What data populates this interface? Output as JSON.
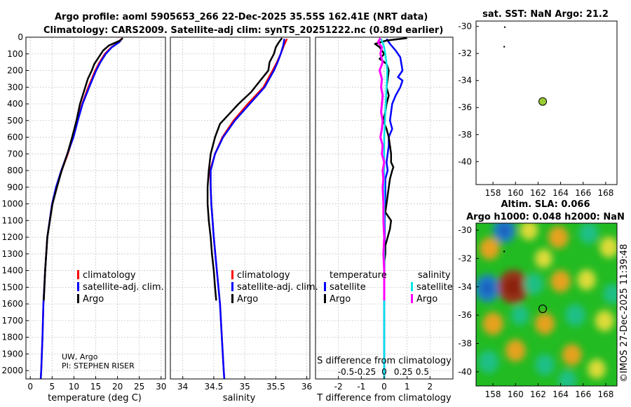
{
  "title_line1": "Argo profile: aoml 5905653_266 22-Dec-2025 35.55S 162.41E (NRT data)",
  "title_line2": "Climatology: CARS2009. Satellite-adj clim: synTS_20251222.nc (0.89d earlier)",
  "credit_line1": "UW, Argo",
  "credit_line2": "PI: STEPHEN RISER",
  "watermark": "©IMOS 27-Dec-2025 11:39:48",
  "colors": {
    "climatology": "#ff0000",
    "satellite": "#0000ff",
    "argo": "#000000",
    "s_satellite": "#00e5e5",
    "s_argo": "#ff00ff",
    "float": "#99cc33",
    "map_bg": "#22bb22"
  },
  "chart_data": [
    {
      "type": "line",
      "id": "temperature",
      "xlabel": "temperature (deg C)",
      "xlim": [
        -1,
        31
      ],
      "xticks": [
        0,
        5,
        10,
        15,
        20,
        25,
        30
      ],
      "ylim": [
        2050,
        0
      ],
      "yticks": [
        0,
        100,
        200,
        300,
        400,
        500,
        600,
        700,
        800,
        900,
        1000,
        1100,
        1200,
        1300,
        1400,
        1500,
        1600,
        1700,
        1800,
        1900,
        2000
      ],
      "legend": [
        "climatology",
        "satellite-adj. clim.",
        "Argo"
      ],
      "series": [
        {
          "name": "climatology",
          "depth": [
            10,
            30,
            60,
            100,
            150,
            200,
            300,
            400,
            500,
            600,
            700,
            800,
            900,
            1000,
            1200,
            1400,
            1600,
            1800,
            2000,
            2050
          ],
          "values": [
            20.8,
            20.3,
            18.6,
            17.1,
            15.9,
            14.9,
            13.3,
            11.9,
            10.8,
            9.8,
            8.6,
            7.2,
            6.0,
            5.0,
            3.9,
            3.4,
            3.0,
            2.8,
            2.5,
            2.4
          ]
        },
        {
          "name": "satellite-adj. clim.",
          "depth": [
            10,
            30,
            60,
            100,
            150,
            200,
            300,
            400,
            500,
            600,
            700,
            800,
            900,
            1000,
            1200,
            1400,
            1600,
            1800,
            2000,
            2050
          ],
          "values": [
            21.0,
            20.4,
            18.7,
            17.3,
            16.1,
            15.1,
            13.5,
            12.0,
            10.9,
            9.9,
            8.5,
            7.1,
            5.9,
            5.0,
            3.9,
            3.4,
            3.0,
            2.8,
            2.5,
            2.4
          ]
        },
        {
          "name": "Argo",
          "depth": [
            5,
            20,
            50,
            80,
            120,
            160,
            200,
            250,
            300,
            400,
            500,
            600,
            700,
            800,
            900,
            1000,
            1200,
            1400,
            1580
          ],
          "values": [
            21.2,
            20.6,
            18.0,
            16.7,
            15.7,
            14.7,
            14.1,
            13.2,
            12.6,
            11.4,
            10.6,
            9.6,
            8.5,
            7.2,
            6.1,
            5.1,
            3.9,
            3.4,
            3.1
          ]
        }
      ]
    },
    {
      "type": "line",
      "id": "salinity",
      "xlabel": "salinity",
      "xlim": [
        33.8,
        36.05
      ],
      "xticks": [
        34,
        34.5,
        35,
        35.5,
        36
      ],
      "ylim": [
        2050,
        0
      ],
      "legend": [
        "climatology",
        "satellite-adj. clim.",
        "Argo"
      ],
      "series": [
        {
          "name": "climatology",
          "depth": [
            10,
            50,
            100,
            150,
            200,
            300,
            400,
            500,
            600,
            700,
            800,
            900,
            1000,
            1200,
            1400,
            1600,
            1800,
            2000,
            2050
          ],
          "values": [
            35.68,
            35.63,
            35.58,
            35.52,
            35.45,
            35.3,
            35.05,
            34.82,
            34.64,
            34.52,
            34.44,
            34.45,
            34.46,
            34.5,
            34.55,
            34.6,
            34.63,
            34.66,
            34.67
          ]
        },
        {
          "name": "satellite-adj. clim.",
          "depth": [
            10,
            50,
            100,
            150,
            200,
            300,
            400,
            500,
            600,
            700,
            800,
            900,
            1000,
            1200,
            1400,
            1600,
            1800,
            2000,
            2050
          ],
          "values": [
            35.64,
            35.62,
            35.58,
            35.53,
            35.47,
            35.32,
            35.08,
            34.84,
            34.65,
            34.52,
            34.45,
            34.45,
            34.46,
            34.5,
            34.55,
            34.6,
            34.63,
            34.66,
            34.67
          ]
        },
        {
          "name": "Argo",
          "depth": [
            5,
            30,
            60,
            100,
            150,
            200,
            260,
            330,
            400,
            460,
            520,
            600,
            700,
            800,
            900,
            1000,
            1100,
            1200,
            1300,
            1400,
            1500,
            1580
          ],
          "values": [
            35.6,
            35.55,
            35.5,
            35.47,
            35.4,
            35.38,
            35.25,
            35.1,
            34.9,
            34.75,
            34.6,
            34.52,
            34.45,
            34.42,
            34.4,
            34.4,
            34.42,
            34.45,
            34.47,
            34.5,
            34.52,
            34.54
          ]
        }
      ]
    },
    {
      "type": "line",
      "id": "differences",
      "xlabel": "T difference from climatology",
      "xlabel_top": "S difference from climatology",
      "xlim": [
        -3,
        3
      ],
      "xticks": [
        -2,
        -1,
        0,
        1,
        2
      ],
      "sticks": [
        -0.5,
        -0.25,
        0,
        0.25,
        0.5
      ],
      "sticklabels": [
        "-0.5",
        "-0.25",
        "0",
        "0.25",
        "0.5"
      ],
      "ylim": [
        2050,
        0
      ],
      "legend_t_header": "temperature",
      "legend_s_header": "salinity",
      "legend_t": [
        "satellite",
        "Argo"
      ],
      "legend_s": [
        "satellite",
        "Argo"
      ],
      "series": [
        {
          "name": "T satellite",
          "depth": [
            10,
            40,
            80,
            120,
            160,
            200,
            240,
            260,
            300,
            350,
            400,
            450,
            500,
            550,
            600,
            650,
            700,
            750,
            800,
            850,
            900,
            950,
            1000,
            1100,
            1200,
            1300,
            1400,
            1500,
            1600,
            1700,
            1800,
            1900,
            2000,
            2050
          ],
          "values": [
            0.1,
            0.25,
            0.5,
            0.7,
            0.75,
            0.8,
            0.6,
            0.8,
            0.7,
            0.5,
            0.35,
            0.3,
            0.25,
            0.35,
            0.2,
            0.2,
            0.15,
            0.1,
            0.15,
            0.05,
            0.05,
            0.05,
            0.03,
            0.02,
            0.02,
            0.01,
            0.01,
            0.0,
            0.0,
            0.0,
            0.0,
            0.0,
            0.0,
            0.0
          ]
        },
        {
          "name": "T Argo",
          "depth": [
            5,
            20,
            40,
            60,
            80,
            100,
            130,
            160,
            200,
            250,
            300,
            350,
            400,
            450,
            500,
            550,
            600,
            650,
            700,
            750,
            780,
            800,
            850,
            900,
            950,
            1000,
            1050,
            1100,
            1150,
            1200,
            1250,
            1300,
            1350,
            1400,
            1450,
            1500,
            1580
          ],
          "values": [
            1.0,
            0.1,
            -0.4,
            -0.2,
            -0.1,
            0.0,
            -0.2,
            0.1,
            0.2,
            0.15,
            0.1,
            0.2,
            0.1,
            0.05,
            -0.05,
            0.1,
            0.2,
            0.25,
            0.3,
            0.3,
            0.4,
            0.35,
            0.25,
            0.2,
            0.15,
            0.1,
            0.05,
            0.3,
            0.25,
            0.15,
            0.05,
            0.05,
            0.0,
            0.0,
            0.0,
            0.0,
            0.0
          ]
        },
        {
          "name": "S satellite",
          "depth": [
            10,
            60,
            120,
            200,
            300,
            400,
            500,
            600,
            700,
            800,
            900,
            1000,
            1200,
            1400,
            1600,
            1800,
            2000,
            2050
          ],
          "values": [
            -0.04,
            0.0,
            0.02,
            0.04,
            0.03,
            0.02,
            0.01,
            0.0,
            0.0,
            0.0,
            0.0,
            0.0,
            0.0,
            0.0,
            0.0,
            0.0,
            0.0,
            0.0
          ]
        },
        {
          "name": "S Argo",
          "depth": [
            5,
            30,
            60,
            100,
            150,
            200,
            250,
            300,
            350,
            400,
            450,
            500,
            550,
            600,
            650,
            700,
            750,
            800,
            850,
            900,
            1000,
            1100,
            1200,
            1300,
            1400,
            1500,
            1580
          ],
          "values": [
            -0.05,
            -0.08,
            -0.03,
            -0.05,
            -0.02,
            -0.06,
            -0.03,
            -0.04,
            -0.02,
            -0.03,
            -0.04,
            -0.02,
            -0.03,
            -0.05,
            -0.02,
            -0.03,
            0.0,
            -0.02,
            -0.01,
            -0.02,
            -0.01,
            -0.01,
            0.0,
            -0.01,
            0.0,
            0.0,
            0.0
          ]
        }
      ]
    },
    {
      "type": "scatter",
      "id": "sst_map",
      "title": "sat. SST: NaN Argo: 21.2",
      "xlim": [
        156.5,
        169
      ],
      "ylim": [
        -41.7,
        -29.6
      ],
      "xticks": [
        158,
        160,
        162,
        164,
        166,
        168
      ],
      "yticks": [
        -30,
        -32,
        -34,
        -36,
        -38,
        -40
      ],
      "float_position": {
        "lon": 162.41,
        "lat": -35.55
      },
      "track_points": [
        {
          "lon": 159.05,
          "lat": -30.05
        },
        {
          "lon": 159.0,
          "lat": -31.5
        }
      ]
    },
    {
      "type": "heatmap",
      "id": "sla_map",
      "title_line1": "Altim. SLA: 0.066",
      "title_line2": "Argo h1000: 0.048 h2000: NaN",
      "xlim": [
        156.5,
        169
      ],
      "ylim": [
        -41,
        -29.5
      ],
      "xticks": [
        158,
        160,
        162,
        164,
        166,
        168
      ],
      "yticks": [
        -30,
        -32,
        -34,
        -36,
        -38,
        -40
      ],
      "float_position": {
        "lon": 162.41,
        "lat": -35.55
      },
      "track_points": [
        {
          "lon": 159.0,
          "lat": -31.5
        }
      ],
      "anomalies": [
        {
          "lon": 157.7,
          "lat": -31.3,
          "v": 0.55
        },
        {
          "lon": 159.0,
          "lat": -30.0,
          "v": -0.8
        },
        {
          "lon": 161.2,
          "lat": -30.0,
          "v": 0.35
        },
        {
          "lon": 163.8,
          "lat": -30.5,
          "v": 0.55
        },
        {
          "lon": 166.5,
          "lat": -30.2,
          "v": -0.5
        },
        {
          "lon": 168.3,
          "lat": -31.2,
          "v": 0.45
        },
        {
          "lon": 162.5,
          "lat": -32.0,
          "v": 0.3
        },
        {
          "lon": 157.5,
          "lat": -34.1,
          "v": -1.0
        },
        {
          "lon": 159.8,
          "lat": -34.0,
          "v": 1.5
        },
        {
          "lon": 161.6,
          "lat": -33.8,
          "v": -0.5
        },
        {
          "lon": 164.0,
          "lat": -33.6,
          "v": 0.55
        },
        {
          "lon": 166.3,
          "lat": -33.5,
          "v": 0.4
        },
        {
          "lon": 168.6,
          "lat": -34.5,
          "v": -0.4
        },
        {
          "lon": 158.0,
          "lat": -36.6,
          "v": 0.6
        },
        {
          "lon": 160.4,
          "lat": -36.0,
          "v": -0.35
        },
        {
          "lon": 162.6,
          "lat": -36.6,
          "v": 0.5
        },
        {
          "lon": 165.3,
          "lat": -36.0,
          "v": -0.55
        },
        {
          "lon": 167.9,
          "lat": -36.4,
          "v": 0.45
        },
        {
          "lon": 157.6,
          "lat": -39.3,
          "v": -0.6
        },
        {
          "lon": 160.0,
          "lat": -38.5,
          "v": 0.55
        },
        {
          "lon": 162.6,
          "lat": -39.5,
          "v": -0.5
        },
        {
          "lon": 165.0,
          "lat": -38.8,
          "v": 0.5
        },
        {
          "lon": 167.2,
          "lat": -39.8,
          "v": 0.35
        },
        {
          "lon": 164.6,
          "lat": -40.6,
          "v": -0.4
        }
      ]
    }
  ]
}
